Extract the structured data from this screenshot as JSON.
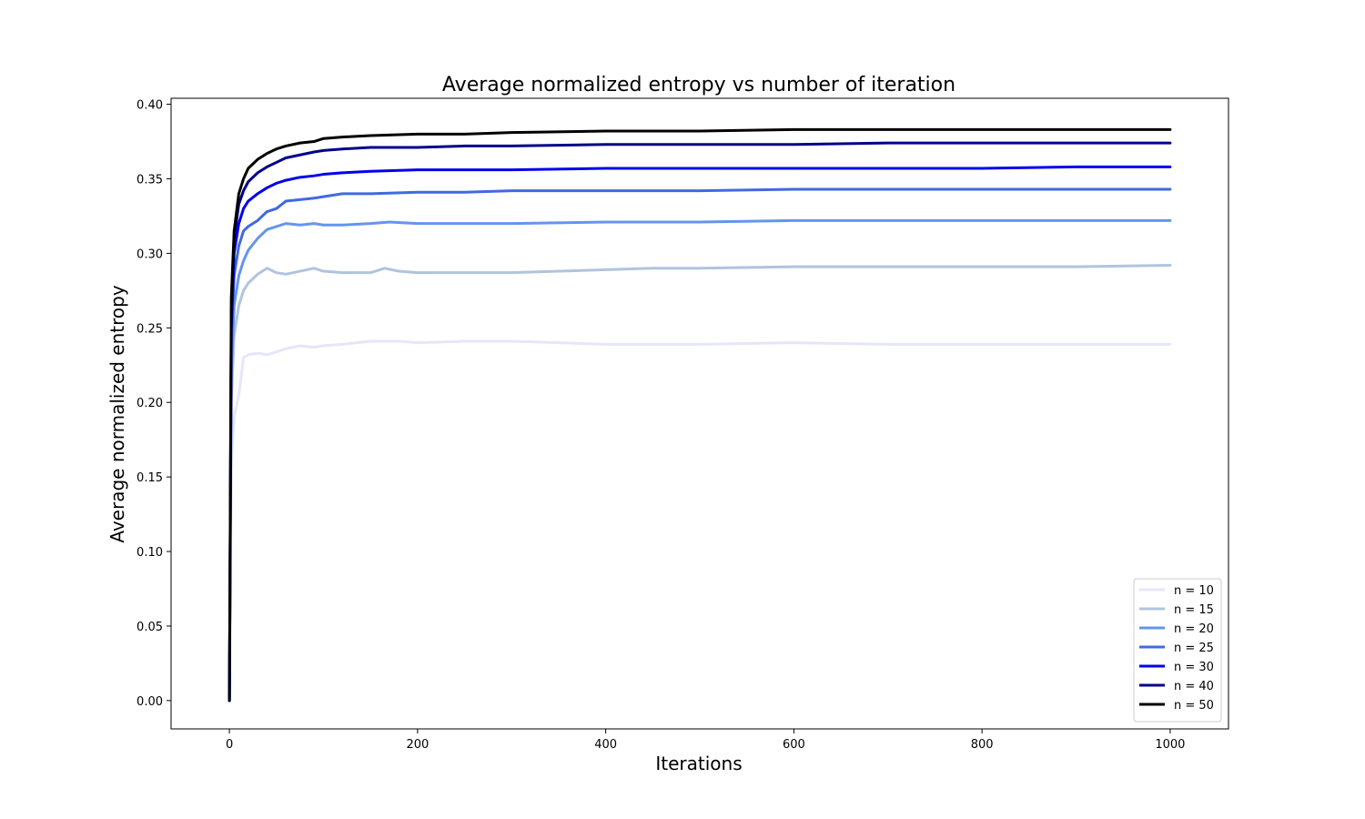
{
  "chart_data": {
    "type": "line",
    "title": "Average normalized entropy vs number of iteration",
    "xlabel": "Iterations",
    "ylabel": "Average normalized entropy",
    "xlim": [
      -62,
      1062
    ],
    "ylim": [
      -0.019,
      0.404
    ],
    "xticks": [
      0,
      200,
      400,
      600,
      800,
      1000
    ],
    "yticks": [
      0.0,
      0.05,
      0.1,
      0.15,
      0.2,
      0.25,
      0.3,
      0.35,
      0.4
    ],
    "xtick_labels": [
      "0",
      "200",
      "400",
      "600",
      "800",
      "1000"
    ],
    "ytick_labels": [
      "0.00",
      "0.05",
      "0.10",
      "0.15",
      "0.20",
      "0.25",
      "0.30",
      "0.35",
      "0.40"
    ],
    "grid": false,
    "legend_position": "bottom-right",
    "series": [
      {
        "name": "n = 10",
        "color": "#e6e6fa",
        "x": [
          0,
          2,
          5,
          10,
          15,
          20,
          30,
          40,
          50,
          60,
          75,
          90,
          100,
          120,
          150,
          180,
          200,
          250,
          300,
          350,
          400,
          450,
          500,
          600,
          700,
          800,
          900,
          1000
        ],
        "y": [
          0.0,
          0.16,
          0.19,
          0.205,
          0.23,
          0.232,
          0.233,
          0.232,
          0.234,
          0.236,
          0.238,
          0.237,
          0.238,
          0.239,
          0.241,
          0.241,
          0.24,
          0.241,
          0.241,
          0.24,
          0.239,
          0.239,
          0.239,
          0.24,
          0.239,
          0.239,
          0.239,
          0.239
        ]
      },
      {
        "name": "n = 15",
        "color": "#b0c4de",
        "x": [
          0,
          2,
          5,
          10,
          15,
          20,
          30,
          40,
          50,
          60,
          75,
          90,
          100,
          120,
          150,
          165,
          180,
          200,
          250,
          300,
          350,
          400,
          450,
          500,
          600,
          700,
          800,
          900,
          1000
        ],
        "y": [
          0.0,
          0.2,
          0.245,
          0.265,
          0.275,
          0.28,
          0.286,
          0.29,
          0.287,
          0.286,
          0.288,
          0.29,
          0.288,
          0.287,
          0.287,
          0.29,
          0.288,
          0.287,
          0.287,
          0.287,
          0.288,
          0.289,
          0.29,
          0.29,
          0.291,
          0.291,
          0.291,
          0.291,
          0.292
        ]
      },
      {
        "name": "n = 20",
        "color": "#6495ed",
        "x": [
          0,
          2,
          5,
          10,
          15,
          20,
          30,
          40,
          50,
          60,
          75,
          90,
          100,
          120,
          150,
          170,
          200,
          250,
          300,
          400,
          500,
          600,
          700,
          800,
          900,
          1000
        ],
        "y": [
          0.0,
          0.22,
          0.265,
          0.285,
          0.295,
          0.302,
          0.31,
          0.316,
          0.318,
          0.32,
          0.319,
          0.32,
          0.319,
          0.319,
          0.32,
          0.321,
          0.32,
          0.32,
          0.32,
          0.321,
          0.321,
          0.322,
          0.322,
          0.322,
          0.322,
          0.322
        ]
      },
      {
        "name": "n = 25",
        "color": "#4169e1",
        "x": [
          0,
          2,
          5,
          10,
          15,
          20,
          30,
          40,
          50,
          60,
          75,
          90,
          100,
          120,
          150,
          200,
          250,
          300,
          400,
          500,
          600,
          700,
          800,
          900,
          1000
        ],
        "y": [
          0.0,
          0.24,
          0.285,
          0.305,
          0.315,
          0.318,
          0.322,
          0.328,
          0.33,
          0.335,
          0.336,
          0.337,
          0.338,
          0.34,
          0.34,
          0.341,
          0.341,
          0.342,
          0.342,
          0.342,
          0.343,
          0.343,
          0.343,
          0.343,
          0.343
        ]
      },
      {
        "name": "n = 30",
        "color": "#0000ee",
        "x": [
          0,
          2,
          5,
          10,
          15,
          20,
          30,
          40,
          50,
          60,
          75,
          90,
          100,
          120,
          150,
          200,
          250,
          300,
          400,
          500,
          600,
          700,
          800,
          900,
          1000
        ],
        "y": [
          0.0,
          0.25,
          0.3,
          0.32,
          0.33,
          0.335,
          0.34,
          0.344,
          0.347,
          0.349,
          0.351,
          0.352,
          0.353,
          0.354,
          0.355,
          0.356,
          0.356,
          0.356,
          0.357,
          0.357,
          0.357,
          0.357,
          0.357,
          0.358,
          0.358
        ]
      },
      {
        "name": "n = 40",
        "color": "#00008b",
        "x": [
          0,
          2,
          5,
          10,
          15,
          20,
          30,
          40,
          50,
          60,
          75,
          90,
          100,
          120,
          150,
          200,
          250,
          300,
          400,
          500,
          600,
          700,
          800,
          900,
          1000
        ],
        "y": [
          0.0,
          0.26,
          0.31,
          0.333,
          0.342,
          0.348,
          0.354,
          0.358,
          0.361,
          0.364,
          0.366,
          0.368,
          0.369,
          0.37,
          0.371,
          0.371,
          0.372,
          0.372,
          0.373,
          0.373,
          0.373,
          0.374,
          0.374,
          0.374,
          0.374
        ]
      },
      {
        "name": "n = 50",
        "color": "#000000",
        "x": [
          0,
          2,
          5,
          10,
          15,
          20,
          30,
          40,
          50,
          60,
          75,
          90,
          100,
          120,
          150,
          200,
          250,
          300,
          400,
          500,
          600,
          700,
          800,
          900,
          1000
        ],
        "y": [
          0.0,
          0.27,
          0.315,
          0.34,
          0.35,
          0.357,
          0.363,
          0.367,
          0.37,
          0.372,
          0.374,
          0.375,
          0.377,
          0.378,
          0.379,
          0.38,
          0.38,
          0.381,
          0.382,
          0.382,
          0.383,
          0.383,
          0.383,
          0.383,
          0.383
        ]
      }
    ]
  }
}
